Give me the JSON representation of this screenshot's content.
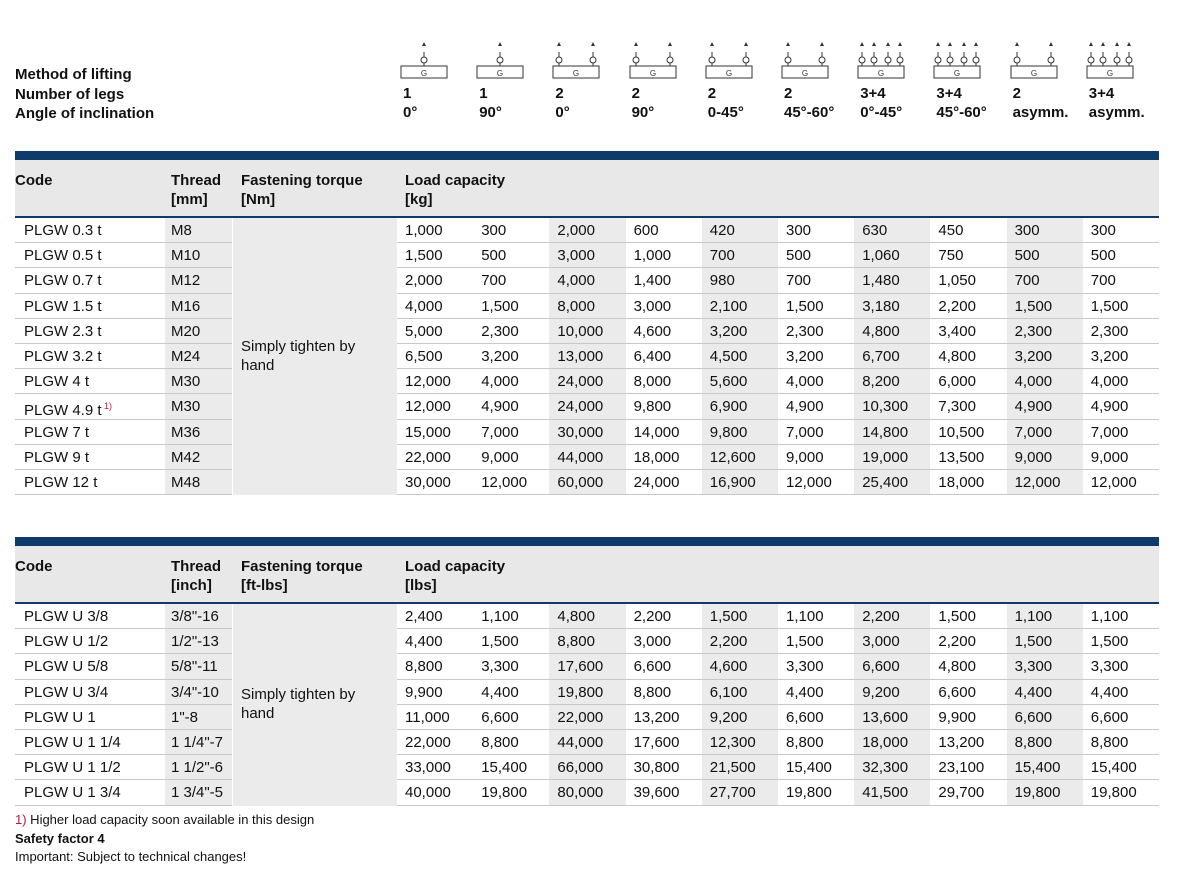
{
  "header": {
    "labels": [
      "Method of lifting",
      "Number of legs",
      "Angle of inclination"
    ],
    "icon_label": "G",
    "methods": [
      {
        "legs": "1",
        "angle": "0°"
      },
      {
        "legs": "1",
        "angle": "90°"
      },
      {
        "legs": "2",
        "angle": "0°"
      },
      {
        "legs": "2",
        "angle": "90°"
      },
      {
        "legs": "2",
        "angle": "0-45°"
      },
      {
        "legs": "2",
        "angle": "45°-60°"
      },
      {
        "legs": "3+4",
        "angle": "0°-45°"
      },
      {
        "legs": "3+4",
        "angle": "45°-60°"
      },
      {
        "legs": "2",
        "angle": "asymm."
      },
      {
        "legs": "3+4",
        "angle": "asymm."
      }
    ]
  },
  "tables": [
    {
      "headers": [
        {
          "title": "Code"
        },
        {
          "title": "Thread",
          "unit": "[mm]"
        },
        {
          "title": "Fastening torque",
          "unit": "[Nm]"
        },
        {
          "title": "Load capacity",
          "unit": "[kg]"
        }
      ],
      "torque": "Simply tighten by hand",
      "rows": [
        {
          "code": "PLGW 0.3 t",
          "thread": "M8",
          "loads": [
            "1,000",
            "300",
            "2,000",
            "600",
            "420",
            "300",
            "630",
            "450",
            "300",
            "300"
          ]
        },
        {
          "code": "PLGW 0.5 t",
          "thread": "M10",
          "loads": [
            "1,500",
            "500",
            "3,000",
            "1,000",
            "700",
            "500",
            "1,060",
            "750",
            "500",
            "500"
          ]
        },
        {
          "code": "PLGW 0.7 t",
          "thread": "M12",
          "loads": [
            "2,000",
            "700",
            "4,000",
            "1,400",
            "980",
            "700",
            "1,480",
            "1,050",
            "700",
            "700"
          ]
        },
        {
          "code": "PLGW 1.5 t",
          "thread": "M16",
          "loads": [
            "4,000",
            "1,500",
            "8,000",
            "3,000",
            "2,100",
            "1,500",
            "3,180",
            "2,200",
            "1,500",
            "1,500"
          ]
        },
        {
          "code": "PLGW 2.3 t",
          "thread": "M20",
          "loads": [
            "5,000",
            "2,300",
            "10,000",
            "4,600",
            "3,200",
            "2,300",
            "4,800",
            "3,400",
            "2,300",
            "2,300"
          ]
        },
        {
          "code": "PLGW 3.2 t",
          "thread": "M24",
          "loads": [
            "6,500",
            "3,200",
            "13,000",
            "6,400",
            "4,500",
            "3,200",
            "6,700",
            "4,800",
            "3,200",
            "3,200"
          ]
        },
        {
          "code": "PLGW 4 t",
          "thread": "M30",
          "loads": [
            "12,000",
            "4,000",
            "24,000",
            "8,000",
            "5,600",
            "4,000",
            "8,200",
            "6,000",
            "4,000",
            "4,000"
          ]
        },
        {
          "code": "PLGW 4.9 t",
          "note": "1)",
          "thread": "M30",
          "loads": [
            "12,000",
            "4,900",
            "24,000",
            "9,800",
            "6,900",
            "4,900",
            "10,300",
            "7,300",
            "4,900",
            "4,900"
          ]
        },
        {
          "code": "PLGW 7 t",
          "thread": "M36",
          "loads": [
            "15,000",
            "7,000",
            "30,000",
            "14,000",
            "9,800",
            "7,000",
            "14,800",
            "10,500",
            "7,000",
            "7,000"
          ]
        },
        {
          "code": "PLGW 9 t",
          "thread": "M42",
          "loads": [
            "22,000",
            "9,000",
            "44,000",
            "18,000",
            "12,600",
            "9,000",
            "19,000",
            "13,500",
            "9,000",
            "9,000"
          ]
        },
        {
          "code": "PLGW 12 t",
          "thread": "M48",
          "loads": [
            "30,000",
            "12,000",
            "60,000",
            "24,000",
            "16,900",
            "12,000",
            "25,400",
            "18,000",
            "12,000",
            "12,000"
          ]
        }
      ]
    },
    {
      "headers": [
        {
          "title": "Code"
        },
        {
          "title": "Thread",
          "unit": "[inch]"
        },
        {
          "title": "Fastening torque",
          "unit": "[ft-lbs]"
        },
        {
          "title": "Load capacity",
          "unit": "[lbs]"
        }
      ],
      "torque": "Simply tighten by hand",
      "rows": [
        {
          "code": "PLGW U 3/8",
          "thread": "3/8\"-16",
          "loads": [
            "2,400",
            "1,100",
            "4,800",
            "2,200",
            "1,500",
            "1,100",
            "2,200",
            "1,500",
            "1,100",
            "1,100"
          ]
        },
        {
          "code": "PLGW U 1/2",
          "thread": "1/2\"-13",
          "loads": [
            "4,400",
            "1,500",
            "8,800",
            "3,000",
            "2,200",
            "1,500",
            "3,000",
            "2,200",
            "1,500",
            "1,500"
          ]
        },
        {
          "code": "PLGW U 5/8",
          "thread": "5/8\"-11",
          "loads": [
            "8,800",
            "3,300",
            "17,600",
            "6,600",
            "4,600",
            "3,300",
            "6,600",
            "4,800",
            "3,300",
            "3,300"
          ]
        },
        {
          "code": "PLGW U 3/4",
          "thread": "3/4\"-10",
          "loads": [
            "9,900",
            "4,400",
            "19,800",
            "8,800",
            "6,100",
            "4,400",
            "9,200",
            "6,600",
            "4,400",
            "4,400"
          ]
        },
        {
          "code": "PLGW U 1",
          "thread": "1\"-8",
          "loads": [
            "11,000",
            "6,600",
            "22,000",
            "13,200",
            "9,200",
            "6,600",
            "13,600",
            "9,900",
            "6,600",
            "6,600"
          ]
        },
        {
          "code": "PLGW U 1 1/4",
          "thread": "1 1/4\"-7",
          "loads": [
            "22,000",
            "8,800",
            "44,000",
            "17,600",
            "12,300",
            "8,800",
            "18,000",
            "13,200",
            "8,800",
            "8,800"
          ]
        },
        {
          "code": "PLGW U 1 1/2",
          "thread": "1 1/2\"-6",
          "loads": [
            "33,000",
            "15,400",
            "66,000",
            "30,800",
            "21,500",
            "15,400",
            "32,300",
            "23,100",
            "15,400",
            "15,400"
          ]
        },
        {
          "code": "PLGW U 1 3/4",
          "thread": "1 3/4\"-5",
          "loads": [
            "40,000",
            "19,800",
            "80,000",
            "39,600",
            "27,700",
            "19,800",
            "41,500",
            "29,700",
            "19,800",
            "19,800"
          ]
        }
      ]
    }
  ],
  "footnotes": {
    "marker": "1)",
    "text": "Higher load capacity soon available in this design",
    "safety": "Safety factor 4",
    "important": "Important: Subject to technical changes!"
  }
}
